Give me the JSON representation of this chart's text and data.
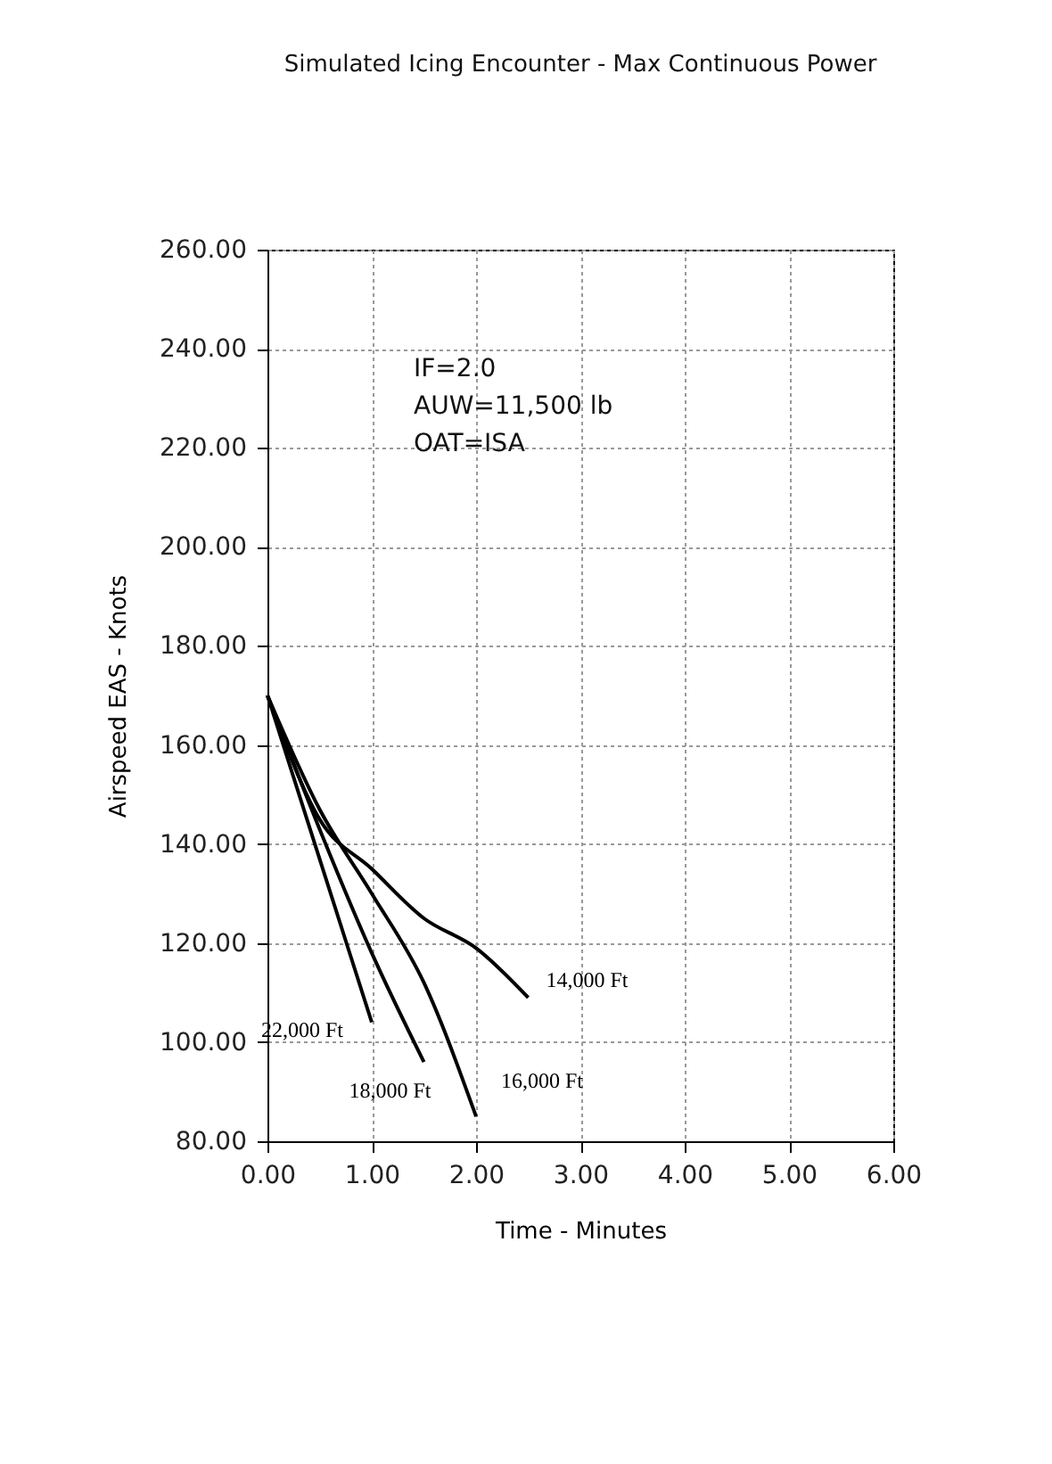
{
  "chart_data": {
    "type": "line",
    "title": "Simulated Icing Encounter - Max Continuous Power",
    "xlabel": "Time - Minutes",
    "ylabel": "Airspeed EAS - Knots",
    "annotations": [
      "IF=2.0",
      "AUW=11,500 lb",
      "OAT=ISA"
    ],
    "series": [
      {
        "name": "14,000 Ft",
        "color": "#000000",
        "x": [
          0,
          0.5,
          1,
          1.5,
          2,
          2.5
        ],
        "values": [
          170,
          145,
          135,
          125,
          119,
          109
        ]
      },
      {
        "name": "16,000 Ft",
        "color": "#000000",
        "x": [
          0,
          0.5,
          1,
          1.5,
          2
        ],
        "values": [
          170,
          147,
          130,
          112,
          85
        ]
      },
      {
        "name": "18,000 Ft",
        "color": "#000000",
        "x": [
          0,
          0.5,
          1,
          1.5
        ],
        "values": [
          170,
          143,
          118,
          96
        ]
      },
      {
        "name": "22,000 Ft",
        "color": "#000000",
        "x": [
          0,
          0.5,
          1
        ],
        "values": [
          170,
          137,
          104
        ]
      }
    ],
    "xlim": [
      0,
      6
    ],
    "xticks": [
      {
        "value": 0,
        "label": "0.00"
      },
      {
        "value": 1,
        "label": "1.00"
      },
      {
        "value": 2,
        "label": "2.00"
      },
      {
        "value": 3,
        "label": "3.00"
      },
      {
        "value": 4,
        "label": "4.00"
      },
      {
        "value": 5,
        "label": "5.00"
      },
      {
        "value": 6,
        "label": "6.00"
      }
    ],
    "ylim": [
      80,
      260
    ],
    "yticks": [
      {
        "value": 80,
        "label": "80.00"
      },
      {
        "value": 100,
        "label": "100.00"
      },
      {
        "value": 120,
        "label": "120.00"
      },
      {
        "value": 140,
        "label": "140.00"
      },
      {
        "value": 160,
        "label": "160.00"
      },
      {
        "value": 180,
        "label": "180.00"
      },
      {
        "value": 200,
        "label": "200.00"
      },
      {
        "value": 220,
        "label": "220.00"
      },
      {
        "value": 240,
        "label": "240.00"
      },
      {
        "value": 260,
        "label": "260.00"
      }
    ],
    "grid": true,
    "legend": false,
    "marker": "none",
    "line_style": "solid"
  }
}
